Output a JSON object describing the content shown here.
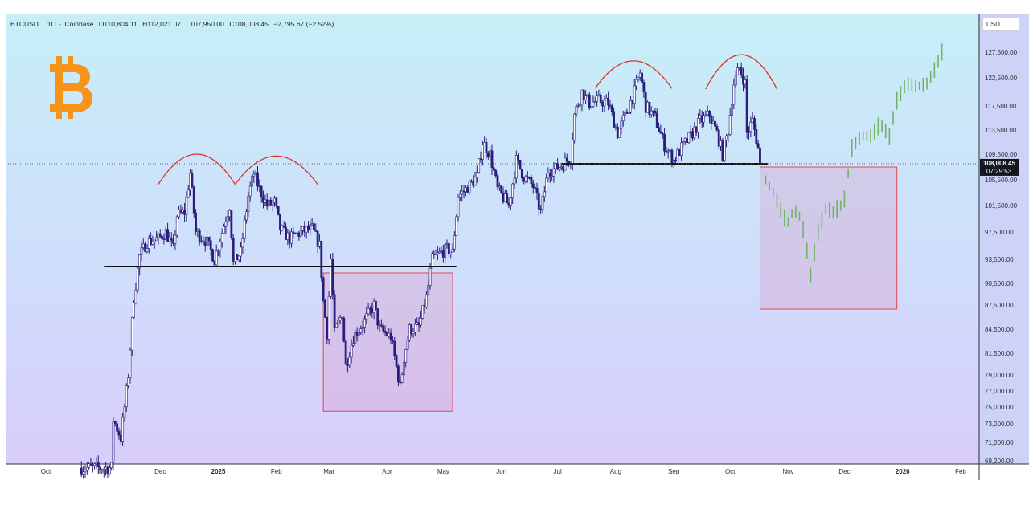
{
  "header": {
    "symbol": "BTCUSD",
    "interval": "1D",
    "exchange": "Coinbase",
    "open": "O110,804.11",
    "high": "H112,021.07",
    "low": "L107,950.00",
    "close": "C108,008.45",
    "change": "−2,795.67 (−2.52%)"
  },
  "currency_button": "USD",
  "current_price": {
    "label": "108,008.45",
    "countdown": "07:29:53",
    "value": 108008.45
  },
  "logo": {
    "icon": "bitcoin-logo-icon",
    "glyph": "₿",
    "color": "#f7931a"
  },
  "colors": {
    "candle": "#2a1c7a",
    "candle_body_up": "#ffffff",
    "projection": "#6fb26a",
    "arcs": "#d9322b",
    "boxes": "#e0474c",
    "bg_top": "#c7eef7",
    "bg_bottom": "#d8cdfb"
  },
  "chart_data": {
    "type": "candlestick",
    "interval": "1D",
    "y_ticks": [
      {
        "value": 127500,
        "label": "127,500.00"
      },
      {
        "value": 122500,
        "label": "122,500.00"
      },
      {
        "value": 117500,
        "label": "117,500.00"
      },
      {
        "value": 113500,
        "label": "113,500.00"
      },
      {
        "value": 109500,
        "label": "109,500.00"
      },
      {
        "value": 105500,
        "label": "105,500.00"
      },
      {
        "value": 101500,
        "label": "101,500.00"
      },
      {
        "value": 97500,
        "label": "97,500.00"
      },
      {
        "value": 93500,
        "label": "93,500.00"
      },
      {
        "value": 90500,
        "label": "90,500.00"
      },
      {
        "value": 87500,
        "label": "87,500.00"
      },
      {
        "value": 84500,
        "label": "84,500.00"
      },
      {
        "value": 81500,
        "label": "81,500.00"
      },
      {
        "value": 79000,
        "label": "79,000.00"
      },
      {
        "value": 77000,
        "label": "77,000.00"
      },
      {
        "value": 75000,
        "label": "75,000.00"
      },
      {
        "value": 73000,
        "label": "73,000.00"
      },
      {
        "value": 71000,
        "label": "71,000.00"
      },
      {
        "value": 69200,
        "label": "69,200.00"
      }
    ],
    "x_ticks": [
      {
        "date": "2024-10-01",
        "label": "Oct",
        "bold": false
      },
      {
        "date": "2024-11-01",
        "label": "Nov",
        "bold": false
      },
      {
        "date": "2024-12-01",
        "label": "Dec",
        "bold": false
      },
      {
        "date": "2025-01-01",
        "label": "2025",
        "bold": true
      },
      {
        "date": "2025-02-01",
        "label": "Feb",
        "bold": false
      },
      {
        "date": "2025-03-01",
        "label": "Mar",
        "bold": false
      },
      {
        "date": "2025-04-01",
        "label": "Apr",
        "bold": false
      },
      {
        "date": "2025-05-01",
        "label": "May",
        "bold": false
      },
      {
        "date": "2025-06-01",
        "label": "Jun",
        "bold": false
      },
      {
        "date": "2025-07-01",
        "label": "Jul",
        "bold": false
      },
      {
        "date": "2025-08-01",
        "label": "Aug",
        "bold": false
      },
      {
        "date": "2025-09-01",
        "label": "Sep",
        "bold": false
      },
      {
        "date": "2025-10-01",
        "label": "Oct",
        "bold": false
      },
      {
        "date": "2025-11-01",
        "label": "Nov",
        "bold": false
      },
      {
        "date": "2025-12-01",
        "label": "Dec",
        "bold": false
      },
      {
        "date": "2026-01-01",
        "label": "2026",
        "bold": true
      },
      {
        "date": "2026-02-01",
        "label": "Feb",
        "bold": false
      }
    ],
    "price_path": [
      [
        "2024-10-20",
        68500
      ],
      [
        "2024-11-05",
        68500
      ],
      [
        "2024-11-06",
        73500
      ],
      [
        "2024-11-10",
        71500
      ],
      [
        "2024-11-12",
        75000
      ],
      [
        "2024-11-13",
        77000
      ],
      [
        "2024-11-14",
        79000
      ],
      [
        "2024-11-17",
        88500
      ],
      [
        "2024-11-20",
        94000
      ],
      [
        "2024-11-24",
        96000
      ],
      [
        "2024-11-30",
        96500
      ],
      [
        "2024-12-04",
        97500
      ],
      [
        "2024-12-08",
        95000
      ],
      [
        "2024-12-10",
        100000
      ],
      [
        "2024-12-14",
        100500
      ],
      [
        "2024-12-17",
        106500
      ],
      [
        "2024-12-20",
        97500
      ],
      [
        "2024-12-26",
        96000
      ],
      [
        "2024-12-30",
        93500
      ],
      [
        "2025-01-02",
        96500
      ],
      [
        "2025-01-07",
        101500
      ],
      [
        "2025-01-09",
        93000
      ],
      [
        "2025-01-13",
        94500
      ],
      [
        "2025-01-17",
        103000
      ],
      [
        "2025-01-20",
        106500
      ],
      [
        "2025-01-23",
        104000
      ],
      [
        "2025-01-27",
        101500
      ],
      [
        "2025-01-31",
        102000
      ],
      [
        "2025-02-03",
        98000
      ],
      [
        "2025-02-08",
        96500
      ],
      [
        "2025-02-14",
        97500
      ],
      [
        "2025-02-20",
        98000
      ],
      [
        "2025-02-24",
        95500
      ],
      [
        "2025-02-26",
        88000
      ],
      [
        "2025-02-28",
        84000
      ],
      [
        "2025-03-02",
        93500
      ],
      [
        "2025-03-04",
        84000
      ],
      [
        "2025-03-08",
        86500
      ],
      [
        "2025-03-10",
        80000
      ],
      [
        "2025-03-14",
        83500
      ],
      [
        "2025-03-20",
        85500
      ],
      [
        "2025-03-25",
        87500
      ],
      [
        "2025-03-28",
        84500
      ],
      [
        "2025-04-03",
        83500
      ],
      [
        "2025-04-08",
        77500
      ],
      [
        "2025-04-10",
        81000
      ],
      [
        "2025-04-13",
        84500
      ],
      [
        "2025-04-18",
        84800
      ],
      [
        "2025-04-22",
        88500
      ],
      [
        "2025-04-25",
        93500
      ],
      [
        "2025-04-30",
        94500
      ],
      [
        "2025-05-03",
        95000
      ],
      [
        "2025-05-06",
        94500
      ],
      [
        "2025-05-09",
        103000
      ],
      [
        "2025-05-13",
        104000
      ],
      [
        "2025-05-19",
        106000
      ],
      [
        "2025-05-22",
        111500
      ],
      [
        "2025-05-26",
        109500
      ],
      [
        "2025-05-30",
        104000
      ],
      [
        "2025-06-05",
        101500
      ],
      [
        "2025-06-09",
        108500
      ],
      [
        "2025-06-13",
        106000
      ],
      [
        "2025-06-18",
        104500
      ],
      [
        "2025-06-22",
        100500
      ],
      [
        "2025-06-26",
        107000
      ],
      [
        "2025-06-30",
        107200
      ],
      [
        "2025-07-04",
        108000
      ],
      [
        "2025-07-08",
        109000
      ],
      [
        "2025-07-10",
        116000
      ],
      [
        "2025-07-14",
        120000
      ],
      [
        "2025-07-18",
        118000
      ],
      [
        "2025-07-23",
        118500
      ],
      [
        "2025-07-28",
        118000
      ],
      [
        "2025-08-02",
        113000
      ],
      [
        "2025-08-07",
        116500
      ],
      [
        "2025-08-11",
        120000
      ],
      [
        "2025-08-14",
        123500
      ],
      [
        "2025-08-17",
        117500
      ],
      [
        "2025-08-22",
        115500
      ],
      [
        "2025-08-27",
        111000
      ],
      [
        "2025-09-01",
        108500
      ],
      [
        "2025-09-05",
        110500
      ],
      [
        "2025-09-10",
        112500
      ],
      [
        "2025-09-15",
        115000
      ],
      [
        "2025-09-20",
        116000
      ],
      [
        "2025-09-24",
        113000
      ],
      [
        "2025-09-27",
        109500
      ],
      [
        "2025-09-30",
        113500
      ],
      [
        "2025-10-03",
        121500
      ],
      [
        "2025-10-06",
        124500
      ],
      [
        "2025-10-09",
        121500
      ],
      [
        "2025-10-10",
        113000
      ],
      [
        "2025-10-13",
        115000
      ],
      [
        "2025-10-16",
        110500
      ],
      [
        "2025-10-17",
        108000
      ]
    ],
    "projection_path": [
      [
        "2025-10-20",
        105500
      ],
      [
        "2025-10-25",
        103000
      ],
      [
        "2025-10-29",
        100000
      ],
      [
        "2025-11-01",
        99000
      ],
      [
        "2025-11-04",
        101000
      ],
      [
        "2025-11-08",
        99500
      ],
      [
        "2025-11-13",
        91500
      ],
      [
        "2025-11-17",
        97500
      ],
      [
        "2025-11-21",
        101000
      ],
      [
        "2025-11-25",
        100500
      ],
      [
        "2025-11-29",
        101500
      ],
      [
        "2025-12-01",
        102500
      ],
      [
        "2025-12-05",
        110500
      ],
      [
        "2025-12-10",
        112500
      ],
      [
        "2025-12-15",
        112500
      ],
      [
        "2025-12-20",
        114500
      ],
      [
        "2025-12-25",
        112500
      ],
      [
        "2025-12-29",
        118500
      ],
      [
        "2026-01-03",
        121500
      ],
      [
        "2026-01-09",
        121000
      ],
      [
        "2026-01-14",
        121500
      ],
      [
        "2026-01-18",
        124000
      ],
      [
        "2026-01-22",
        127500
      ],
      [
        "2026-01-23",
        129000
      ]
    ],
    "support_lines": [
      {
        "start": "2024-11-01",
        "end": "2025-05-08",
        "price": 92600
      },
      {
        "start": "2025-07-03",
        "end": "2025-10-21",
        "price": 108000
      }
    ],
    "arcs": [
      {
        "start": "2024-11-30",
        "end": "2025-01-10",
        "base": 104800,
        "peak": 109500
      },
      {
        "start": "2025-01-10",
        "end": "2025-02-23",
        "base": 104800,
        "peak": 109200
      },
      {
        "start": "2025-07-21",
        "end": "2025-08-31",
        "base": 120600,
        "peak": 125800
      },
      {
        "start": "2025-09-18",
        "end": "2025-10-26",
        "base": 120500,
        "peak": 127000
      }
    ],
    "boxes": [
      {
        "start": "2025-02-26",
        "end": "2025-05-06",
        "top": 91800,
        "bottom": 74500
      },
      {
        "start": "2025-10-17",
        "end": "2025-12-29",
        "top": 107500,
        "bottom": 87000
      }
    ]
  }
}
